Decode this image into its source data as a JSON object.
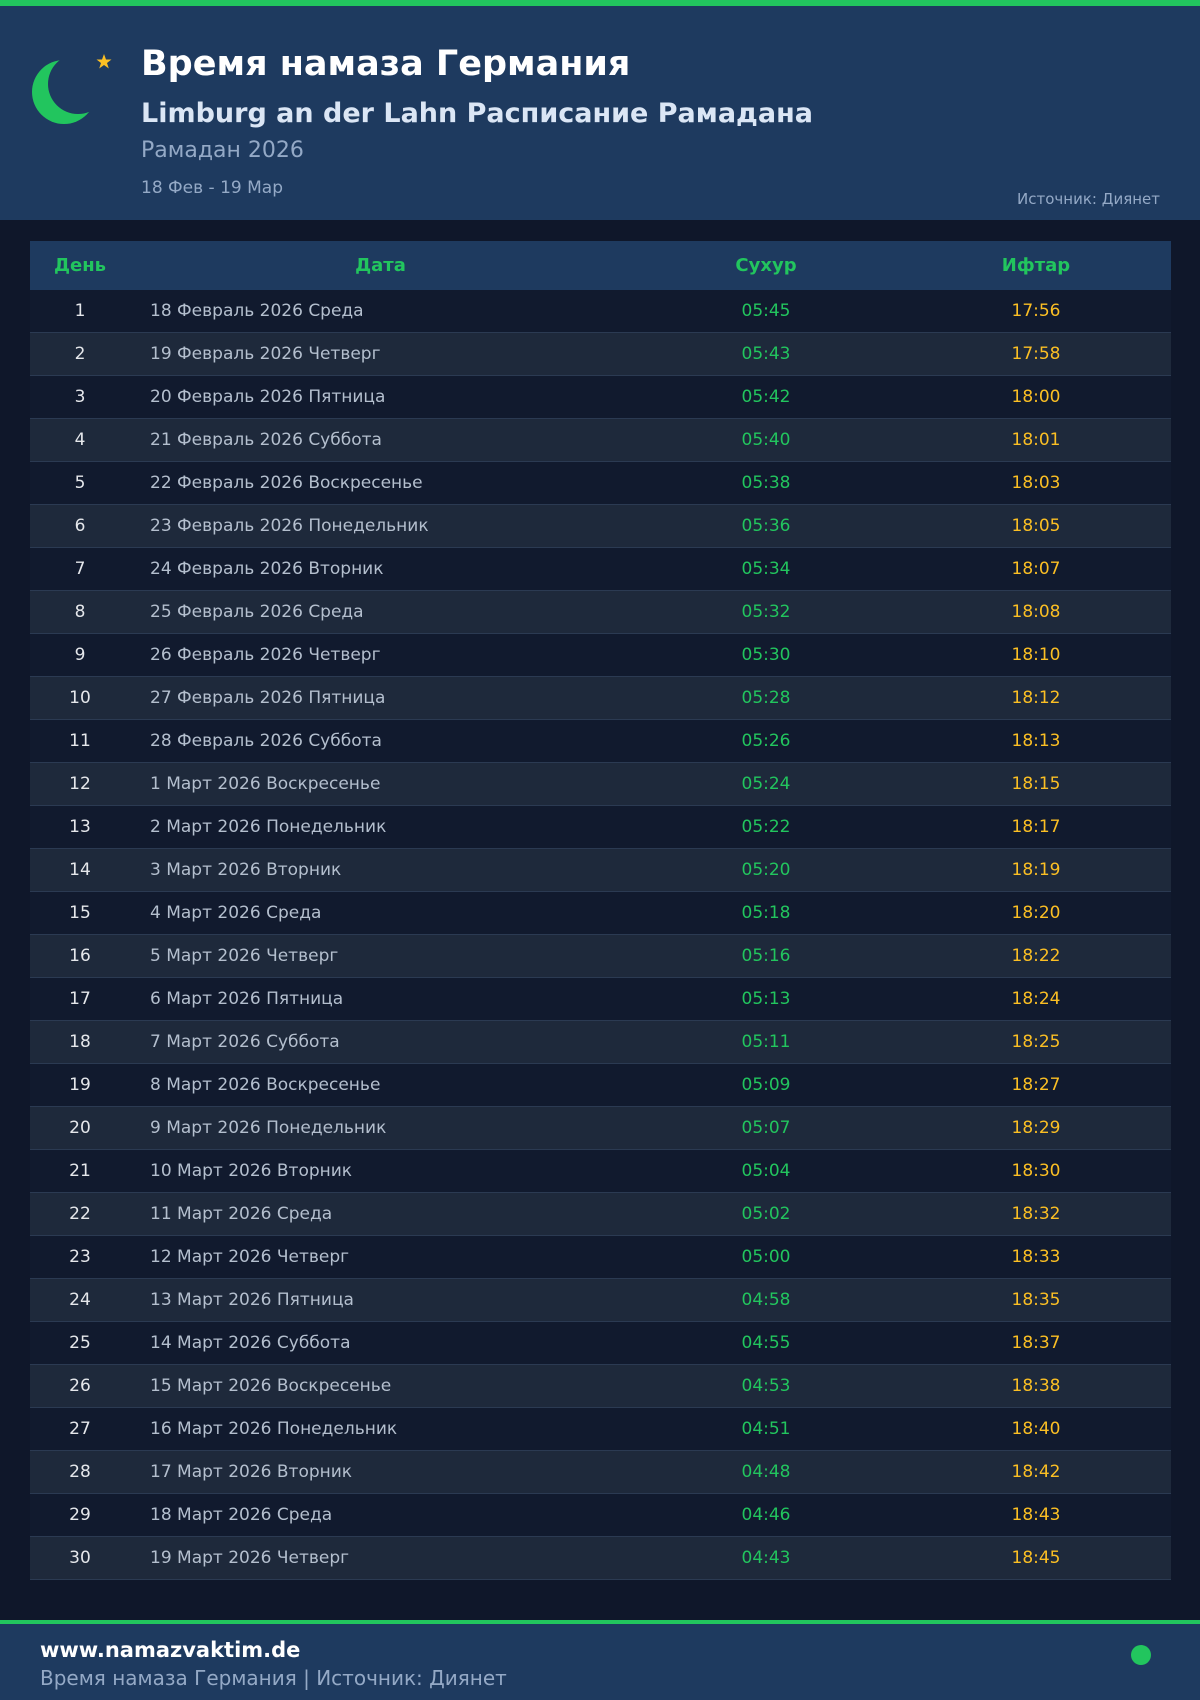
{
  "header": {
    "title": "Время намаза Германия",
    "subtitle": "Limburg an der Lahn Расписание Рамадана",
    "ramadan": "Рамадан 2026",
    "range": "18 Фев - 19 Мар",
    "source": "Источник: Диянет",
    "logo_icon": "crescent-star-icon"
  },
  "table": {
    "columns": [
      "День",
      "Дата",
      "Сухур",
      "Ифтар"
    ],
    "rows": [
      [
        "1",
        "18 Февраль 2026 Среда",
        "05:45",
        "17:56"
      ],
      [
        "2",
        "19 Февраль 2026 Четверг",
        "05:43",
        "17:58"
      ],
      [
        "3",
        "20 Февраль 2026 Пятница",
        "05:42",
        "18:00"
      ],
      [
        "4",
        "21 Февраль 2026 Суббота",
        "05:40",
        "18:01"
      ],
      [
        "5",
        "22 Февраль 2026 Воскресенье",
        "05:38",
        "18:03"
      ],
      [
        "6",
        "23 Февраль 2026 Понедельник",
        "05:36",
        "18:05"
      ],
      [
        "7",
        "24 Февраль 2026 Вторник",
        "05:34",
        "18:07"
      ],
      [
        "8",
        "25 Февраль 2026 Среда",
        "05:32",
        "18:08"
      ],
      [
        "9",
        "26 Февраль 2026 Четверг",
        "05:30",
        "18:10"
      ],
      [
        "10",
        "27 Февраль 2026 Пятница",
        "05:28",
        "18:12"
      ],
      [
        "11",
        "28 Февраль 2026 Суббота",
        "05:26",
        "18:13"
      ],
      [
        "12",
        "1 Март 2026 Воскресенье",
        "05:24",
        "18:15"
      ],
      [
        "13",
        "2 Март 2026 Понедельник",
        "05:22",
        "18:17"
      ],
      [
        "14",
        "3 Март 2026 Вторник",
        "05:20",
        "18:19"
      ],
      [
        "15",
        "4 Март 2026 Среда",
        "05:18",
        "18:20"
      ],
      [
        "16",
        "5 Март 2026 Четверг",
        "05:16",
        "18:22"
      ],
      [
        "17",
        "6 Март 2026 Пятница",
        "05:13",
        "18:24"
      ],
      [
        "18",
        "7 Март 2026 Суббота",
        "05:11",
        "18:25"
      ],
      [
        "19",
        "8 Март 2026 Воскресенье",
        "05:09",
        "18:27"
      ],
      [
        "20",
        "9 Март 2026 Понедельник",
        "05:07",
        "18:29"
      ],
      [
        "21",
        "10 Март 2026 Вторник",
        "05:04",
        "18:30"
      ],
      [
        "22",
        "11 Март 2026 Среда",
        "05:02",
        "18:32"
      ],
      [
        "23",
        "12 Март 2026 Четверг",
        "05:00",
        "18:33"
      ],
      [
        "24",
        "13 Март 2026 Пятница",
        "04:58",
        "18:35"
      ],
      [
        "25",
        "14 Март 2026 Суббота",
        "04:55",
        "18:37"
      ],
      [
        "26",
        "15 Март 2026 Воскресенье",
        "04:53",
        "18:38"
      ],
      [
        "27",
        "16 Март 2026 Понедельник",
        "04:51",
        "18:40"
      ],
      [
        "28",
        "17 Март 2026 Вторник",
        "04:48",
        "18:42"
      ],
      [
        "29",
        "18 Март 2026 Среда",
        "04:46",
        "18:43"
      ],
      [
        "30",
        "19 Март 2026 Четверг",
        "04:43",
        "18:45"
      ]
    ]
  },
  "footer": {
    "site": "www.namazvaktim.de",
    "text": "Время намаза Германия | Источник: Диянет"
  },
  "colors": {
    "accent": "#22c55e",
    "iftar": "#fbbf24",
    "header_bg": "#1e3a5f",
    "page_bg": "#0f172a"
  }
}
